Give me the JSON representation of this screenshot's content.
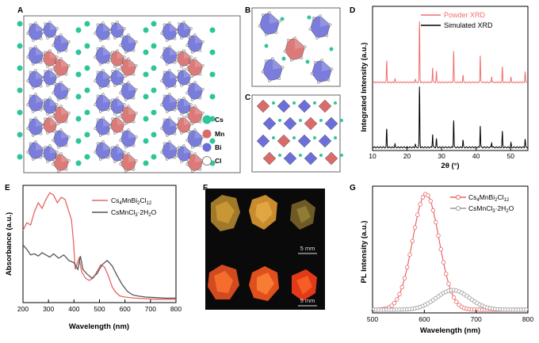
{
  "panels": {
    "A": {
      "label": "A",
      "legend": [
        {
          "sym": "Cs",
          "color": "#2fc59a"
        },
        {
          "sym": "Mn",
          "color": "#d96b6b"
        },
        {
          "sym": "Bi",
          "color": "#6c6fd8"
        },
        {
          "sym": "Cl",
          "color": "#c8c8c8"
        }
      ]
    },
    "B": {
      "label": "B"
    },
    "C": {
      "label": "C"
    },
    "D": {
      "label": "D"
    },
    "E": {
      "label": "E"
    },
    "F": {
      "label": "F",
      "scale_top": "5 mm",
      "scale_bottom": "5 mm"
    },
    "G": {
      "label": "G"
    }
  },
  "chart_data": [
    {
      "id": "D",
      "type": "line",
      "title": "",
      "xlabel": "2θ (°)",
      "ylabel": "Integrated Intensity (a.u.)",
      "xlim": [
        10,
        55
      ],
      "xticks": [
        "10",
        "20",
        "30",
        "40",
        "50"
      ],
      "legend": [
        "Powder XRD",
        "Simulated XRD"
      ],
      "series": [
        {
          "name": "Powder XRD",
          "color": "#f07070",
          "offset": 0.55,
          "peaks": [
            [
              14.1,
              0.35
            ],
            [
              16.5,
              0.05
            ],
            [
              22.4,
              0.05
            ],
            [
              23.6,
              1.0
            ],
            [
              27.4,
              0.25
            ],
            [
              28.5,
              0.18
            ],
            [
              33.5,
              0.52
            ],
            [
              36.2,
              0.12
            ],
            [
              41.2,
              0.45
            ],
            [
              44.5,
              0.1
            ],
            [
              47.6,
              0.25
            ],
            [
              50.1,
              0.08
            ],
            [
              54.2,
              0.18
            ]
          ]
        },
        {
          "name": "Simulated XRD",
          "color": "#000000",
          "offset": 0.0,
          "peaks": [
            [
              14.1,
              0.3
            ],
            [
              16.5,
              0.05
            ],
            [
              22.4,
              0.05
            ],
            [
              23.6,
              1.0
            ],
            [
              27.4,
              0.22
            ],
            [
              28.5,
              0.14
            ],
            [
              33.5,
              0.45
            ],
            [
              36.2,
              0.12
            ],
            [
              41.2,
              0.36
            ],
            [
              44.5,
              0.08
            ],
            [
              47.6,
              0.26
            ],
            [
              50.1,
              0.07
            ],
            [
              54.2,
              0.14
            ]
          ]
        }
      ]
    },
    {
      "id": "E",
      "type": "line",
      "xlabel": "Wavelength (nm)",
      "ylabel": "Absorbance (a.u.)",
      "xlim": [
        200,
        800
      ],
      "xticks": [
        "200",
        "300",
        "400",
        "500",
        "600",
        "700",
        "800"
      ],
      "legend_html": [
        "Cs4MnBi2Cl12",
        "CsMnCl3·2H2O"
      ],
      "series": [
        {
          "name": "Cs4MnBi2Cl12",
          "color": "#e86565",
          "x": [
            200,
            215,
            230,
            245,
            260,
            275,
            290,
            305,
            320,
            335,
            350,
            365,
            380,
            390,
            398,
            405,
            412,
            420,
            430,
            445,
            460,
            475,
            490,
            505,
            520,
            535,
            550,
            565,
            580,
            600,
            640,
            680,
            720,
            760,
            800
          ],
          "y": [
            0.65,
            0.72,
            0.7,
            0.82,
            0.9,
            0.85,
            0.93,
            0.99,
            0.97,
            0.9,
            0.95,
            0.93,
            0.82,
            0.75,
            0.55,
            0.3,
            0.35,
            0.4,
            0.28,
            0.22,
            0.2,
            0.22,
            0.28,
            0.34,
            0.32,
            0.24,
            0.14,
            0.09,
            0.06,
            0.05,
            0.04,
            0.035,
            0.03,
            0.03,
            0.03
          ]
        },
        {
          "name": "CsMnCl3·2H2O",
          "color": "#555555",
          "x": [
            200,
            215,
            230,
            245,
            260,
            275,
            290,
            305,
            320,
            340,
            360,
            380,
            400,
            415,
            425,
            435,
            450,
            470,
            490,
            510,
            530,
            550,
            570,
            590,
            610,
            630,
            650,
            680,
            720,
            760,
            800
          ],
          "y": [
            0.52,
            0.48,
            0.43,
            0.44,
            0.42,
            0.45,
            0.43,
            0.41,
            0.44,
            0.4,
            0.43,
            0.38,
            0.36,
            0.3,
            0.42,
            0.3,
            0.26,
            0.22,
            0.26,
            0.34,
            0.38,
            0.33,
            0.24,
            0.16,
            0.1,
            0.07,
            0.06,
            0.05,
            0.045,
            0.04,
            0.04
          ]
        }
      ]
    },
    {
      "id": "G",
      "type": "line",
      "xlabel": "Wavelength (nm)",
      "ylabel": "PL Intensity (a.u.)",
      "xlim": [
        500,
        800
      ],
      "xticks": [
        "500",
        "600",
        "700",
        "800"
      ],
      "legend_html": [
        "Cs4MnBi2Cl12",
        "CsMnCl3·2H2O"
      ],
      "series": [
        {
          "name": "Cs4MnBi2Cl12",
          "color": "#e86565",
          "center": 603,
          "width": 36,
          "amp": 1.0
        },
        {
          "name": "CsMnCl3·2H2O",
          "color": "#999999",
          "center": 655,
          "width": 45,
          "amp": 0.17
        }
      ]
    }
  ]
}
